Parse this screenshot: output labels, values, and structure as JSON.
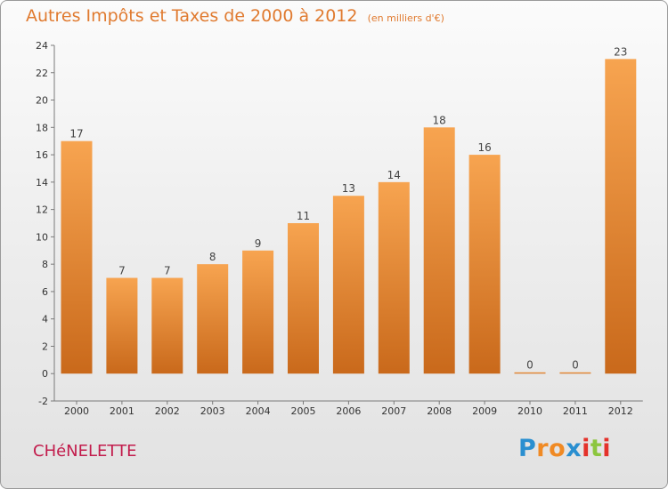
{
  "title": "Autres Impôts et Taxes de 2000 à 2012",
  "title_unit": "(en milliers d'€)",
  "commune": "CHéNELETTE",
  "logo": {
    "text": "Proxiti",
    "letters": [
      "P",
      "r",
      "o",
      "x",
      "i",
      "t",
      "i"
    ],
    "colors": [
      "#2a8fd0",
      "#f08a24",
      "#f08a24",
      "#2a8fd0",
      "#e4322b",
      "#8cc63e",
      "#e4322b"
    ]
  },
  "colors": {
    "title": "#e07a2f",
    "commune": "#c21c4c",
    "bar_light": "#f7a450",
    "bar_dark": "#c9691b",
    "axis": "#7a7a7a"
  },
  "chart_data": {
    "type": "bar",
    "categories": [
      "2000",
      "2001",
      "2002",
      "2003",
      "2004",
      "2005",
      "2006",
      "2007",
      "2008",
      "2009",
      "2010",
      "2011",
      "2012"
    ],
    "values": [
      17,
      7,
      7,
      8,
      9,
      11,
      13,
      14,
      18,
      16,
      0,
      0,
      23
    ],
    "data_labels": [
      "17",
      "7",
      "7",
      "8",
      "9",
      "11",
      "13",
      "14",
      "18",
      "16",
      "0",
      "0",
      "23"
    ],
    "ylim": [
      -2,
      24
    ],
    "yticks": [
      -2,
      0,
      2,
      4,
      6,
      8,
      10,
      12,
      14,
      16,
      18,
      20,
      22,
      24
    ],
    "ytick_labels": [
      "-2",
      "0",
      "2",
      "4",
      "6",
      "8",
      "10",
      "12",
      "14",
      "16",
      "18",
      "20",
      "22",
      "24"
    ],
    "grid": false
  }
}
